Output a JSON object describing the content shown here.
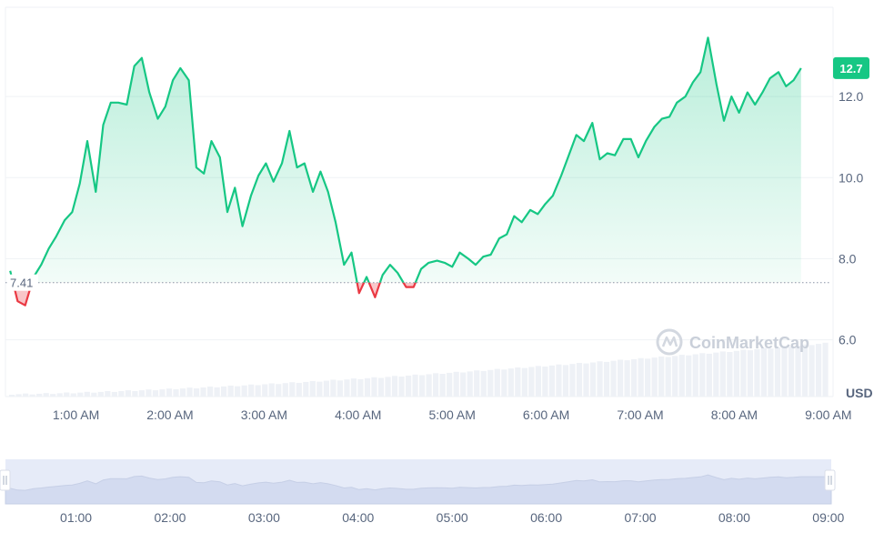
{
  "chart_data": {
    "type": "line",
    "unit": "USD",
    "watermark": "CoinMarketCap",
    "current_value_label": "12.7",
    "baseline_value_label": "7.41",
    "baseline": 7.41,
    "ylim": [
      4.6,
      14.2
    ],
    "y_ticks": [
      {
        "value": 6.0,
        "label": "6.0"
      },
      {
        "value": 8.0,
        "label": "8.0"
      },
      {
        "value": 10.0,
        "label": "10.0"
      },
      {
        "value": 12.0,
        "label": "12.0"
      }
    ],
    "x_range_hours": [
      0.25,
      9.05
    ],
    "x_ticks": [
      {
        "t": 1.0,
        "label": "1:00 AM"
      },
      {
        "t": 2.0,
        "label": "2:00 AM"
      },
      {
        "t": 3.0,
        "label": "3:00 AM"
      },
      {
        "t": 4.0,
        "label": "4:00 AM"
      },
      {
        "t": 5.0,
        "label": "5:00 AM"
      },
      {
        "t": 6.0,
        "label": "6:00 AM"
      },
      {
        "t": 7.0,
        "label": "7:00 AM"
      },
      {
        "t": 8.0,
        "label": "8:00 AM"
      },
      {
        "t": 9.0,
        "label": "9:00 AM"
      }
    ],
    "navigator_ticks": [
      {
        "t": 1.0,
        "label": "01:00"
      },
      {
        "t": 2.0,
        "label": "02:00"
      },
      {
        "t": 3.0,
        "label": "03:00"
      },
      {
        "t": 4.0,
        "label": "04:00"
      },
      {
        "t": 5.0,
        "label": "05:00"
      },
      {
        "t": 6.0,
        "label": "06:00"
      },
      {
        "t": 7.0,
        "label": "07:00"
      },
      {
        "t": 8.0,
        "label": "08:00"
      },
      {
        "t": 9.0,
        "label": "09:00"
      }
    ],
    "colors": {
      "up": "#16c784",
      "down": "#ea3943"
    },
    "series": [
      {
        "values": [
          [
            0.3,
            7.7
          ],
          [
            0.38,
            6.95
          ],
          [
            0.46,
            6.85
          ],
          [
            0.55,
            7.55
          ],
          [
            0.63,
            7.85
          ],
          [
            0.71,
            8.25
          ],
          [
            0.79,
            8.55
          ],
          [
            0.88,
            8.95
          ],
          [
            0.96,
            9.15
          ],
          [
            1.04,
            9.85
          ],
          [
            1.12,
            10.9
          ],
          [
            1.21,
            9.65
          ],
          [
            1.29,
            11.3
          ],
          [
            1.37,
            11.85
          ],
          [
            1.45,
            11.85
          ],
          [
            1.54,
            11.8
          ],
          [
            1.62,
            12.75
          ],
          [
            1.7,
            12.95
          ],
          [
            1.78,
            12.1
          ],
          [
            1.87,
            11.45
          ],
          [
            1.95,
            11.75
          ],
          [
            2.03,
            12.4
          ],
          [
            2.11,
            12.7
          ],
          [
            2.2,
            12.4
          ],
          [
            2.28,
            10.25
          ],
          [
            2.36,
            10.1
          ],
          [
            2.44,
            10.9
          ],
          [
            2.53,
            10.5
          ],
          [
            2.61,
            9.15
          ],
          [
            2.69,
            9.75
          ],
          [
            2.77,
            8.8
          ],
          [
            2.86,
            9.55
          ],
          [
            2.94,
            10.05
          ],
          [
            3.02,
            10.35
          ],
          [
            3.1,
            9.9
          ],
          [
            3.19,
            10.35
          ],
          [
            3.27,
            11.15
          ],
          [
            3.35,
            10.25
          ],
          [
            3.43,
            10.35
          ],
          [
            3.52,
            9.65
          ],
          [
            3.6,
            10.15
          ],
          [
            3.68,
            9.65
          ],
          [
            3.76,
            8.9
          ],
          [
            3.85,
            7.85
          ],
          [
            3.93,
            8.15
          ],
          [
            4.01,
            7.15
          ],
          [
            4.09,
            7.55
          ],
          [
            4.18,
            7.05
          ],
          [
            4.26,
            7.6
          ],
          [
            4.34,
            7.85
          ],
          [
            4.42,
            7.65
          ],
          [
            4.51,
            7.3
          ],
          [
            4.59,
            7.3
          ],
          [
            4.67,
            7.75
          ],
          [
            4.75,
            7.9
          ],
          [
            4.84,
            7.95
          ],
          [
            4.92,
            7.9
          ],
          [
            5.0,
            7.8
          ],
          [
            5.08,
            8.15
          ],
          [
            5.17,
            8.0
          ],
          [
            5.25,
            7.85
          ],
          [
            5.33,
            8.05
          ],
          [
            5.41,
            8.1
          ],
          [
            5.5,
            8.5
          ],
          [
            5.58,
            8.6
          ],
          [
            5.66,
            9.05
          ],
          [
            5.74,
            8.9
          ],
          [
            5.83,
            9.2
          ],
          [
            5.91,
            9.1
          ],
          [
            5.99,
            9.35
          ],
          [
            6.07,
            9.55
          ],
          [
            6.16,
            10.05
          ],
          [
            6.24,
            10.55
          ],
          [
            6.32,
            11.05
          ],
          [
            6.4,
            10.9
          ],
          [
            6.49,
            11.35
          ],
          [
            6.57,
            10.45
          ],
          [
            6.65,
            10.6
          ],
          [
            6.73,
            10.55
          ],
          [
            6.82,
            10.95
          ],
          [
            6.9,
            10.95
          ],
          [
            6.98,
            10.5
          ],
          [
            7.06,
            10.9
          ],
          [
            7.15,
            11.25
          ],
          [
            7.23,
            11.45
          ],
          [
            7.31,
            11.5
          ],
          [
            7.39,
            11.85
          ],
          [
            7.48,
            12.0
          ],
          [
            7.56,
            12.35
          ],
          [
            7.64,
            12.6
          ],
          [
            7.72,
            13.45
          ],
          [
            7.81,
            12.3
          ],
          [
            7.89,
            11.4
          ],
          [
            7.97,
            12.0
          ],
          [
            8.05,
            11.6
          ],
          [
            8.14,
            12.1
          ],
          [
            8.22,
            11.8
          ],
          [
            8.3,
            12.1
          ],
          [
            8.38,
            12.45
          ],
          [
            8.47,
            12.6
          ],
          [
            8.55,
            12.25
          ],
          [
            8.63,
            12.4
          ],
          [
            8.71,
            12.7
          ]
        ]
      }
    ]
  }
}
